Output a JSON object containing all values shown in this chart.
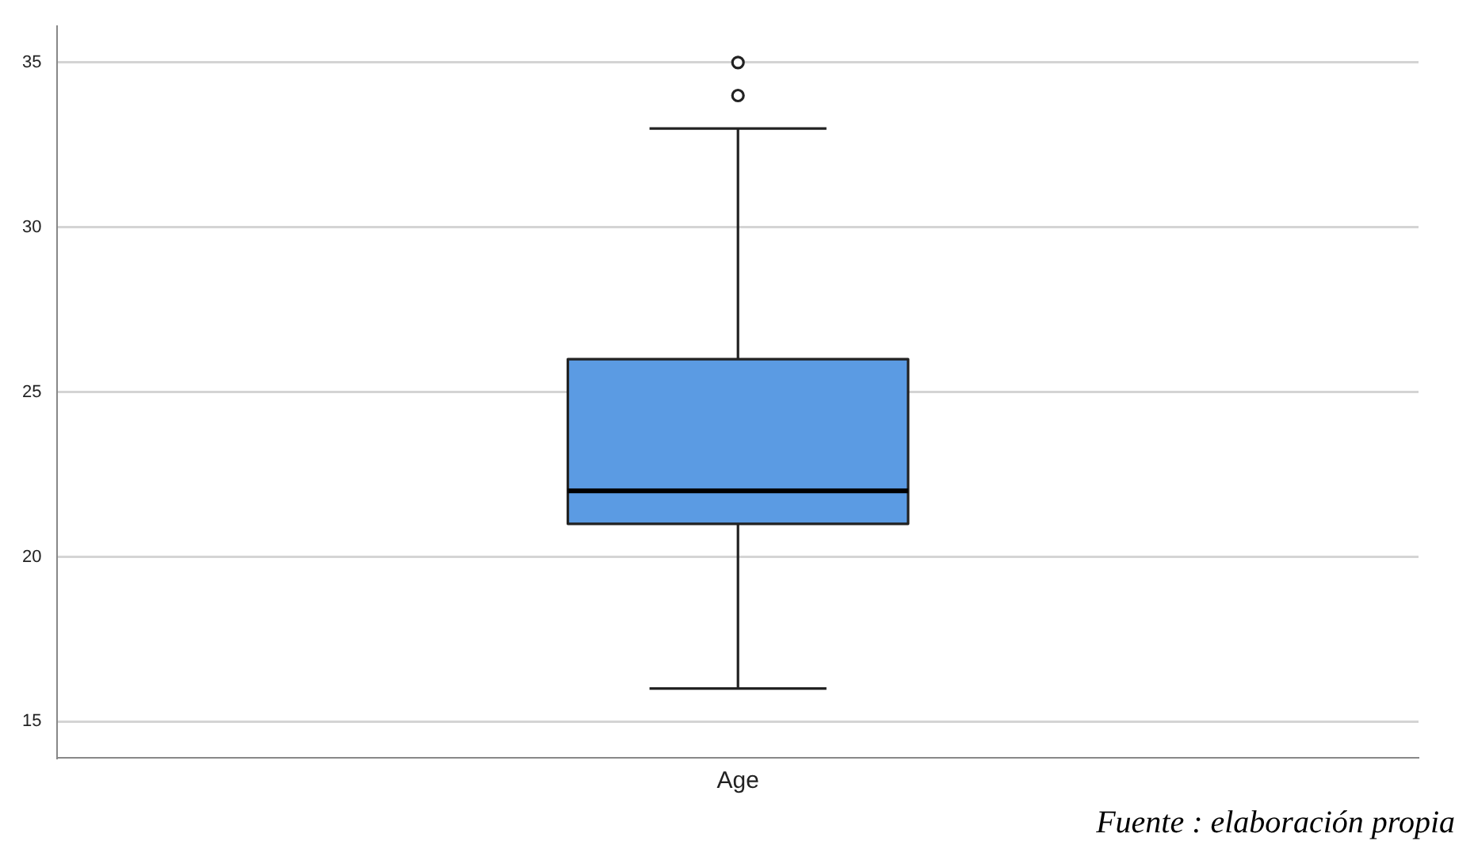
{
  "chart_data": {
    "type": "box",
    "categories": [
      "Age"
    ],
    "boxes": [
      {
        "low": 16,
        "q1": 21,
        "median": 22,
        "q3": 26,
        "high": 33,
        "outliers": [
          34,
          35
        ]
      }
    ],
    "color": "#5b9be3",
    "ylim": [
      13.9,
      36.1
    ],
    "yticks": [
      15,
      20,
      25,
      30,
      35
    ],
    "grid": "y",
    "legend": false,
    "annotations": [
      "Fuente : elaboración propia"
    ]
  }
}
